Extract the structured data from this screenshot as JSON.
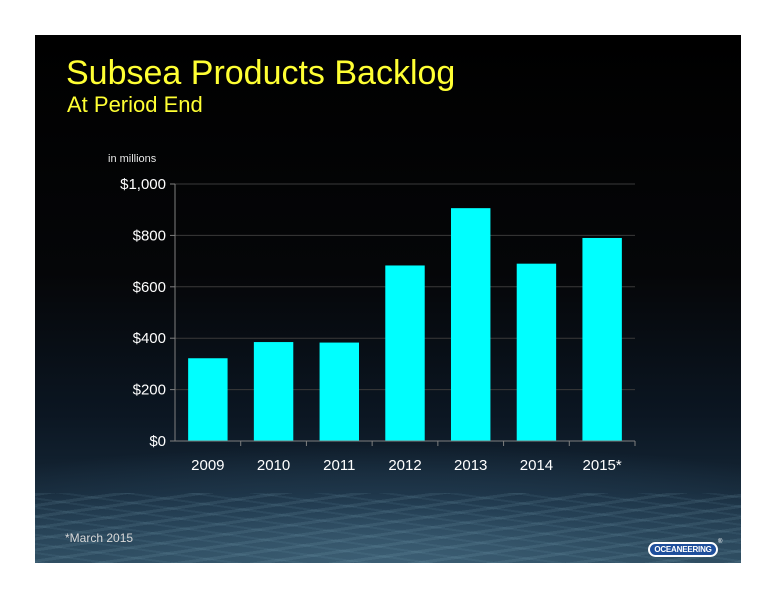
{
  "slide": {
    "title": "Subsea Products Backlog",
    "subtitle": "At Period End",
    "footnote": "*March 2015",
    "logo_text": "OCEANEERING",
    "logo_mark": "®"
  },
  "chart_data": {
    "type": "bar",
    "title": "Subsea Products Backlog",
    "subtitle": "At Period End",
    "ylabel": "in millions",
    "xlabel": "",
    "categories": [
      "2009",
      "2010",
      "2011",
      "2012",
      "2013",
      "2014",
      "2015*"
    ],
    "values": [
      322,
      385,
      383,
      683,
      906,
      690,
      790
    ],
    "ylim": [
      0,
      1000
    ],
    "yticks": [
      0,
      200,
      400,
      600,
      800,
      1000
    ],
    "ytick_labels": [
      "$0",
      "$200",
      "$400",
      "$600",
      "$800",
      "$1,000"
    ],
    "grid": true,
    "legend": "none",
    "bar_color": "#00ffff",
    "gridline_color": "#3a3a3a",
    "axis_color": "#7f7f7f"
  }
}
